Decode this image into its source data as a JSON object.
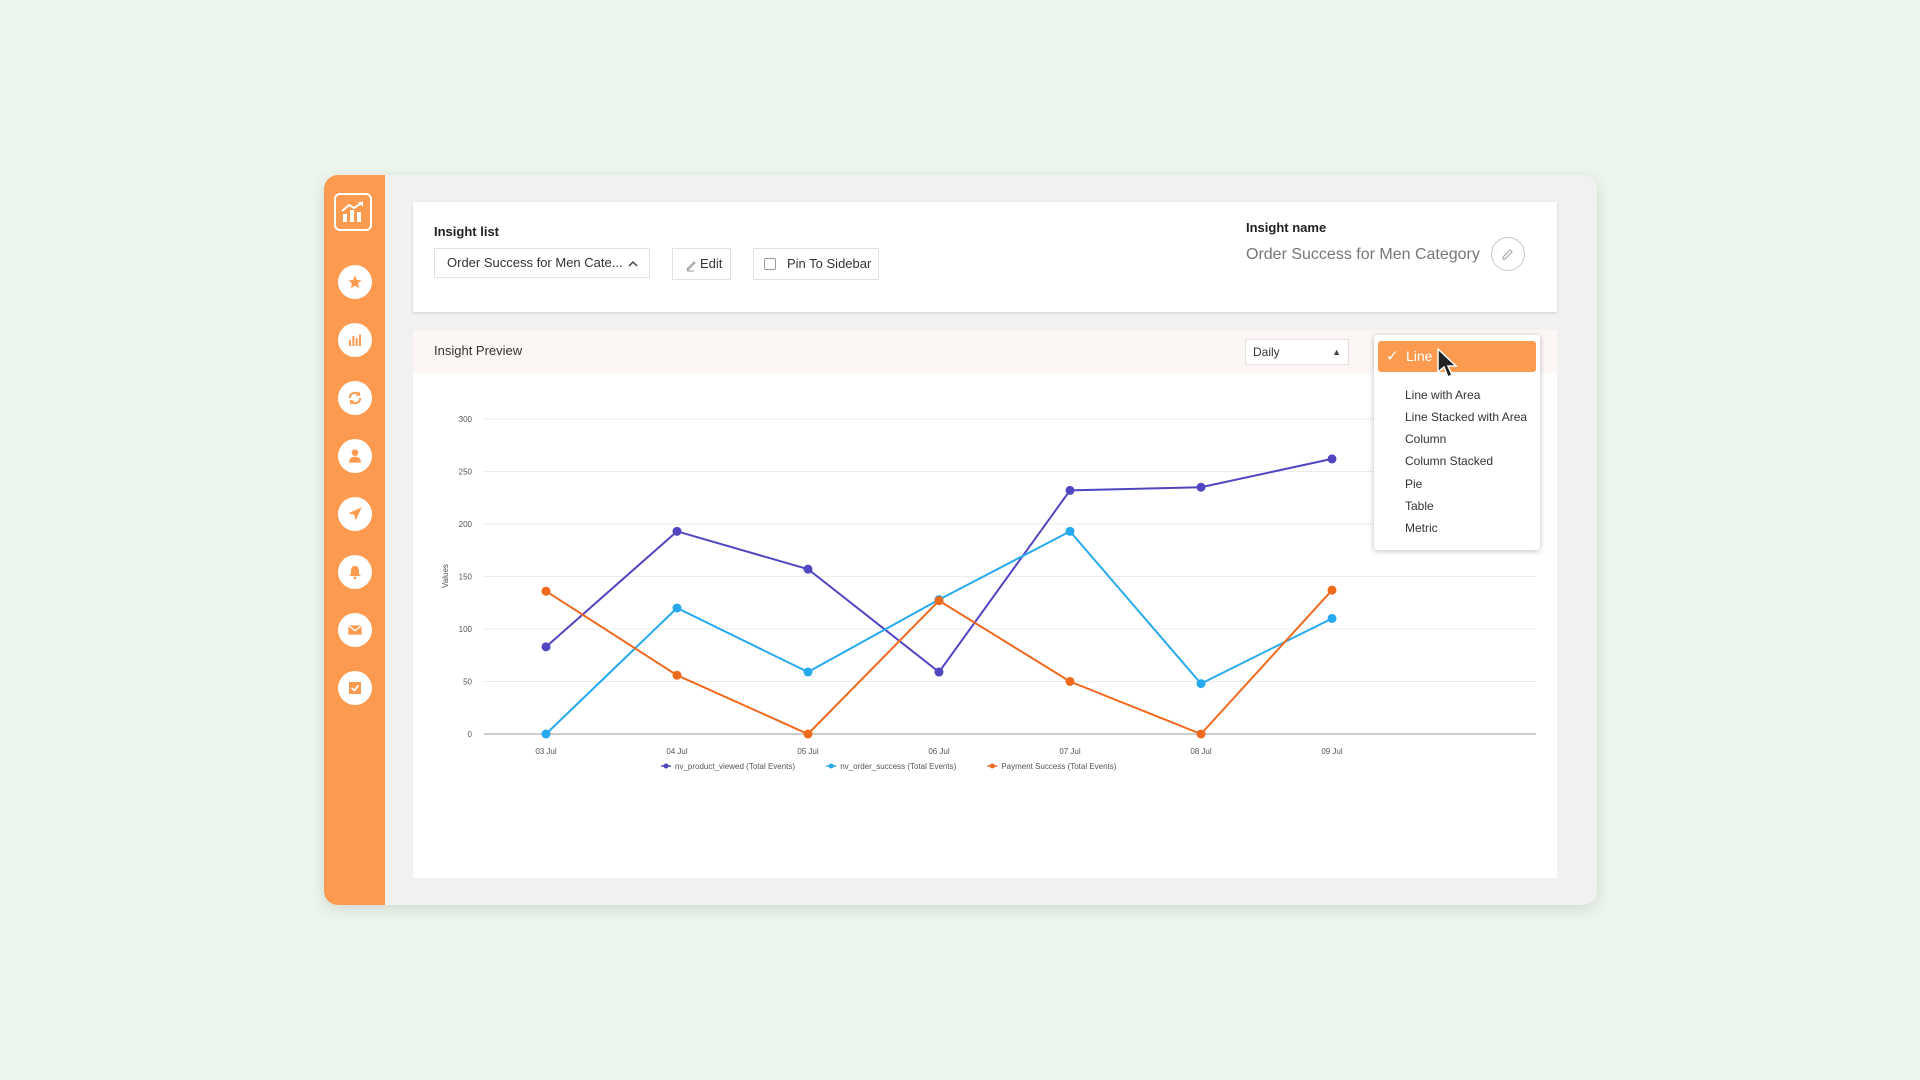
{
  "header": {
    "insight_list_label": "Insight list",
    "insight_selected": "Order Success for Men Cate...",
    "edit_label": "Edit",
    "pin_label": "Pin To Sidebar",
    "pin_checked": false,
    "insight_name_label": "Insight name",
    "insight_name_value": "Order Success for Men Category"
  },
  "sidebar": {
    "items": [
      "favorites",
      "reports",
      "sync",
      "users",
      "campaigns",
      "notifications",
      "email",
      "tasks"
    ]
  },
  "preview": {
    "title": "Insight Preview",
    "period_selected": "Daily"
  },
  "chart_types": {
    "selected": "Line",
    "options": [
      "Line with Area",
      "Line Stacked with Area",
      "Column",
      "Column Stacked",
      "Pie",
      "Table",
      "Metric"
    ]
  },
  "chart_data": {
    "type": "line",
    "categories": [
      "03 Jul",
      "04 Jul",
      "05 Jul",
      "06 Jul",
      "07 Jul",
      "08 Jul",
      "09 Jul"
    ],
    "ylabel": "Values",
    "ylim": [
      0,
      300
    ],
    "yticks": [
      0,
      50,
      100,
      150,
      200,
      250,
      300
    ],
    "grid": true,
    "legend": "bottom",
    "series": [
      {
        "name": "nv_product_viewed (Total Events)",
        "color": "#5146c2",
        "values": [
          83,
          193,
          157,
          59,
          232,
          235,
          262
        ]
      },
      {
        "name": "nv_order_success (Total Events)",
        "color": "#27a9ee",
        "values": [
          0,
          120,
          59,
          128,
          193,
          48,
          110
        ]
      },
      {
        "name": "Payment Success (Total Events)",
        "color": "#f06a1e",
        "values": [
          136,
          56,
          0,
          127,
          50,
          0,
          137
        ]
      }
    ]
  },
  "colors": {
    "accent": "#fc9a50",
    "background": "#ecf6ec"
  }
}
